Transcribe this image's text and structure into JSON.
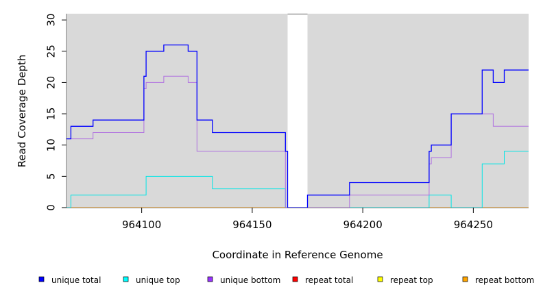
{
  "chart_data": {
    "type": "line",
    "title": "",
    "xlabel": "Coordinate in Reference Genome",
    "ylabel": "Read Coverage Depth",
    "xlim": [
      964066,
      964275
    ],
    "ylim": [
      0,
      31
    ],
    "x_ticks": [
      964100,
      964150,
      964200,
      964250
    ],
    "y_ticks": [
      0,
      5,
      10,
      15,
      20,
      25,
      30
    ],
    "grid": false,
    "background": "#d9d9d9",
    "gap_region": [
      964166,
      964175
    ],
    "step_style": "post",
    "legend_position": "bottom",
    "series": [
      {
        "name": "unique total",
        "color": "#0000ff",
        "points": [
          [
            964066,
            11
          ],
          [
            964068,
            13
          ],
          [
            964078,
            14
          ],
          [
            964101,
            21
          ],
          [
            964102,
            25
          ],
          [
            964110,
            26
          ],
          [
            964121,
            25
          ],
          [
            964125,
            14
          ],
          [
            964132,
            12
          ],
          [
            964165,
            9
          ],
          [
            964166,
            0
          ],
          [
            964175,
            2
          ],
          [
            964194,
            4
          ],
          [
            964230,
            9
          ],
          [
            964231,
            10
          ],
          [
            964240,
            15
          ],
          [
            964254,
            22
          ],
          [
            964259,
            20
          ],
          [
            964264,
            22
          ],
          [
            964275,
            22
          ]
        ]
      },
      {
        "name": "unique top",
        "color": "#00e5e5",
        "points": [
          [
            964066,
            0
          ],
          [
            964068,
            2
          ],
          [
            964102,
            5
          ],
          [
            964132,
            3
          ],
          [
            964165,
            0
          ],
          [
            964230,
            2
          ],
          [
            964240,
            0
          ],
          [
            964254,
            7
          ],
          [
            964264,
            9
          ],
          [
            964275,
            9
          ]
        ]
      },
      {
        "name": "unique bottom",
        "color": "#b070e0",
        "points": [
          [
            964066,
            11
          ],
          [
            964078,
            12
          ],
          [
            964101,
            19
          ],
          [
            964102,
            20
          ],
          [
            964110,
            21
          ],
          [
            964121,
            20
          ],
          [
            964125,
            9
          ],
          [
            964165,
            0
          ],
          [
            964194,
            2
          ],
          [
            964230,
            7
          ],
          [
            964231,
            8
          ],
          [
            964240,
            15
          ],
          [
            964259,
            13
          ],
          [
            964275,
            13
          ]
        ]
      },
      {
        "name": "repeat total",
        "color": "#ff0000",
        "points": [
          [
            964066,
            0
          ],
          [
            964275,
            0
          ]
        ]
      },
      {
        "name": "repeat top",
        "color": "#ffff00",
        "points": [
          [
            964066,
            0
          ],
          [
            964275,
            0
          ]
        ]
      },
      {
        "name": "repeat bottom",
        "color": "#ff9900",
        "points": [
          [
            964066,
            0
          ],
          [
            964275,
            0
          ]
        ]
      }
    ],
    "legend": [
      {
        "label": "unique total",
        "color": "#0000ff"
      },
      {
        "label": "unique top",
        "color": "#00ffff"
      },
      {
        "label": "unique bottom",
        "color": "#9933ff"
      },
      {
        "label": "repeat total",
        "color": "#ff0000"
      },
      {
        "label": "repeat top",
        "color": "#ffff00"
      },
      {
        "label": "repeat bottom",
        "color": "#ffa500"
      }
    ]
  }
}
